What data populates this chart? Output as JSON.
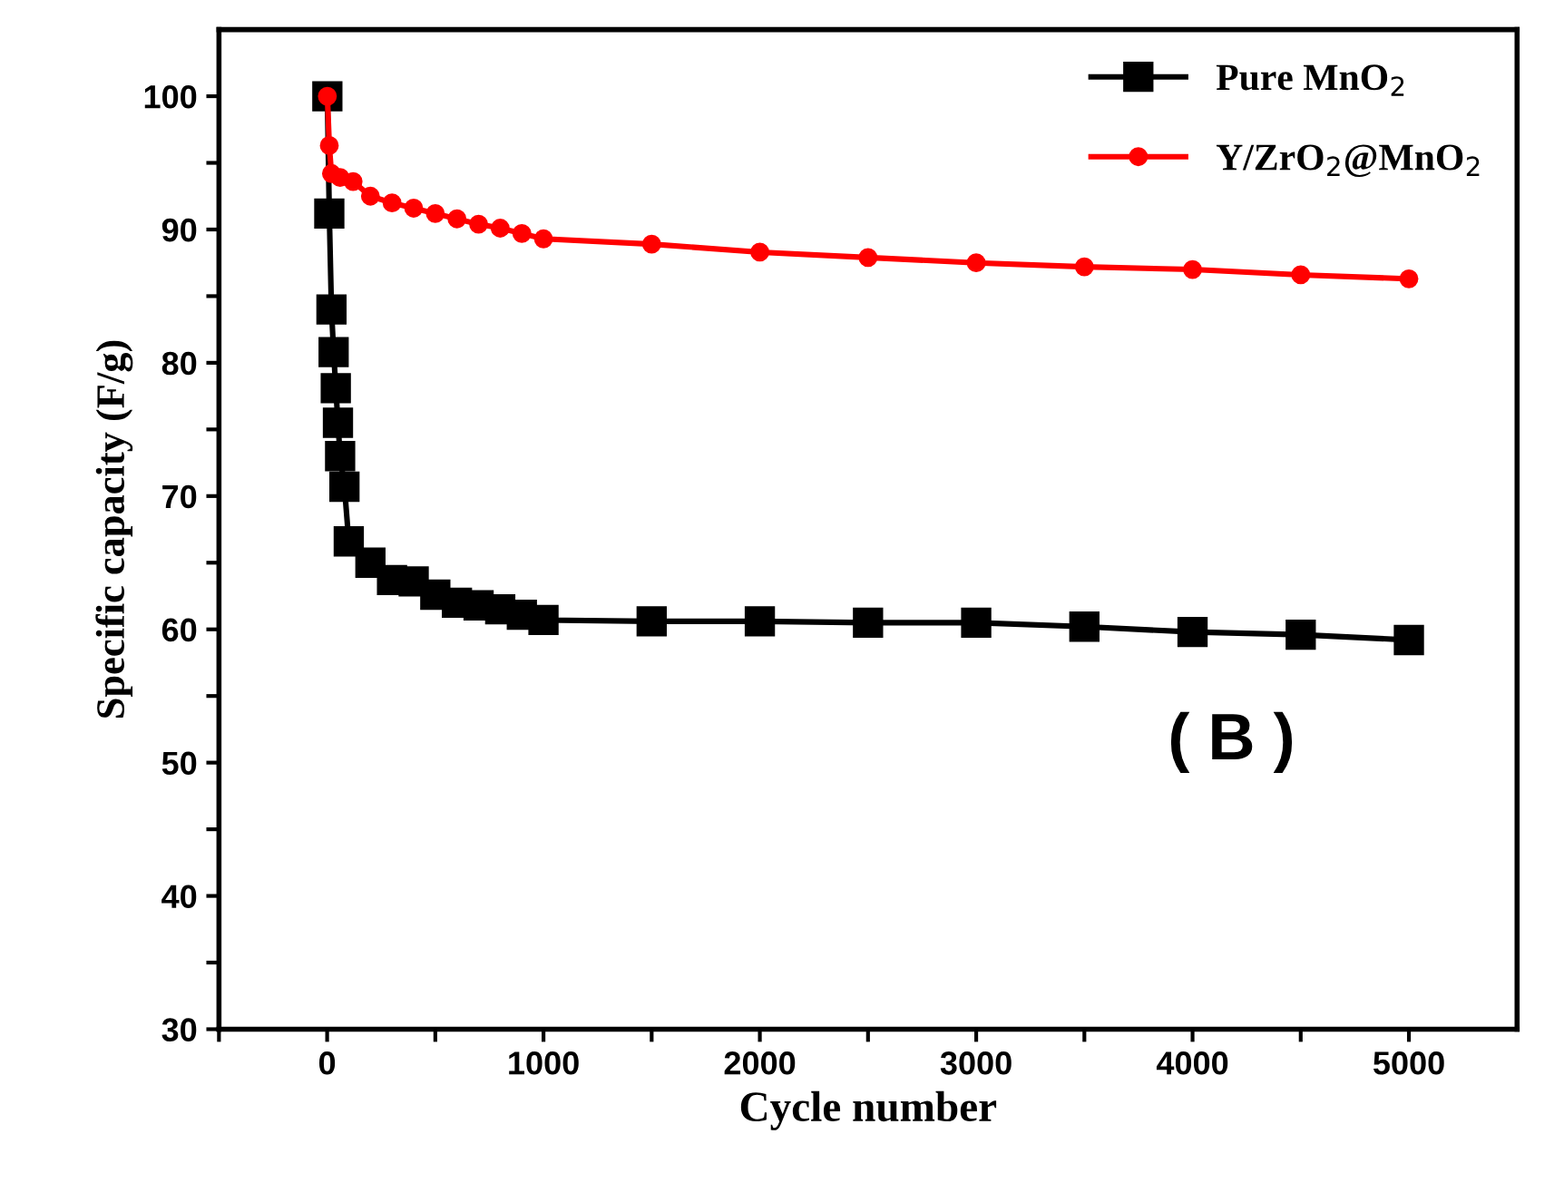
{
  "chart_data": {
    "type": "line",
    "xlabel": "Cycle number",
    "ylabel": "Specific capacity (F/g)",
    "series": [
      {
        "name": "Pure MnO$_{2}$",
        "color": "#000000",
        "marker": "square",
        "x": [
          1,
          10,
          20,
          30,
          40,
          50,
          60,
          80,
          100,
          200,
          300,
          400,
          500,
          600,
          700,
          800,
          900,
          1000,
          1500,
          2000,
          2500,
          3000,
          3500,
          4000,
          4500,
          5000
        ],
        "values": [
          100,
          91.2,
          84.0,
          80.8,
          78.1,
          75.5,
          73.0,
          70.7,
          66.6,
          65.0,
          63.7,
          63.6,
          62.6,
          62.0,
          61.8,
          61.5,
          61.1,
          60.7,
          60.6,
          60.6,
          60.5,
          60.5,
          60.2,
          59.8,
          59.6,
          59.2
        ]
      },
      {
        "name": "Y/ZrO$_{2}$@MnO$_{2}$",
        "color": "#ff0000",
        "marker": "circle",
        "x": [
          1,
          10,
          20,
          60,
          120,
          200,
          300,
          400,
          500,
          600,
          700,
          800,
          900,
          1000,
          1500,
          2000,
          2500,
          3000,
          3500,
          4000,
          4500,
          5000
        ],
        "values": [
          100,
          96.3,
          94.2,
          93.9,
          93.6,
          92.5,
          92.0,
          91.6,
          91.2,
          90.8,
          90.4,
          90.1,
          89.7,
          89.3,
          88.9,
          88.3,
          87.9,
          87.5,
          87.2,
          87.0,
          86.6,
          86.3
        ]
      }
    ],
    "xlim": [
      -500,
      5500
    ],
    "xticks": [
      {
        "value": -500,
        "label": null
      },
      0,
      {
        "value": 500,
        "label": null
      },
      1000,
      {
        "value": 1500,
        "label": null
      },
      2000,
      {
        "value": 2500,
        "label": null
      },
      3000,
      {
        "value": 3500,
        "label": null
      },
      4000,
      {
        "value": 4500,
        "label": null
      },
      5000
    ],
    "ylim": [
      30,
      105
    ],
    "yticks": [
      30,
      {
        "value": 35,
        "label": null
      },
      40,
      {
        "value": 45,
        "label": null
      },
      50,
      {
        "value": 55,
        "label": null
      },
      60,
      {
        "value": 65,
        "label": null
      },
      70,
      {
        "value": 75,
        "label": null
      },
      80,
      {
        "value": 85,
        "label": null
      },
      90,
      {
        "value": 95,
        "label": null
      },
      100
    ],
    "annotations": [
      "( B )"
    ],
    "legend": "top right",
    "grid": false,
    "line_style": "solid"
  }
}
